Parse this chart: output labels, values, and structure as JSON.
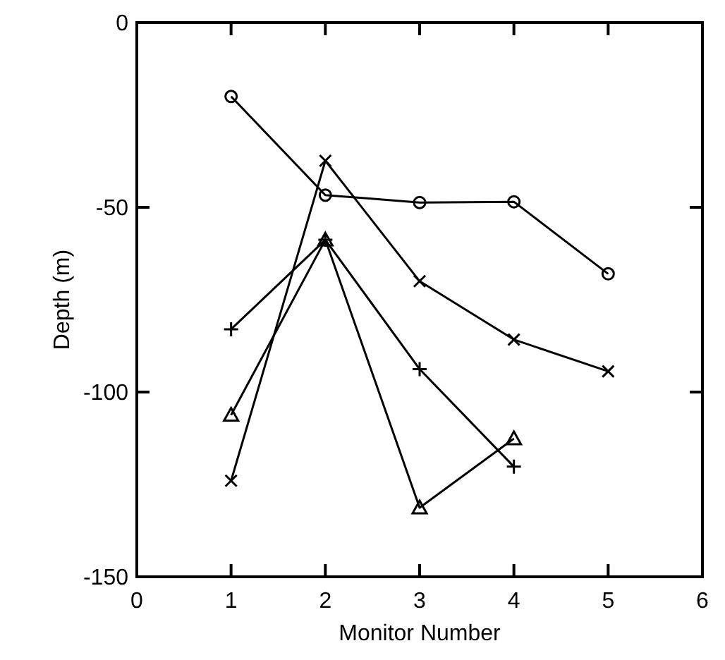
{
  "chart_data": {
    "type": "line",
    "xlabel": "Monitor Number",
    "ylabel": "Depth (m)",
    "xlim": [
      0,
      6
    ],
    "xticks": [
      0,
      1,
      2,
      3,
      4,
      5,
      6
    ],
    "ylim": [
      -150,
      0
    ],
    "yticks": [
      -150,
      -100,
      -50,
      0
    ],
    "grid": false,
    "line_style": "solid",
    "series": [
      {
        "color": "#000000",
        "marker": "circle",
        "x": [
          1,
          2,
          3,
          4,
          5
        ],
        "values": [
          -20,
          -46.7,
          -48.7,
          -48.5,
          -68
        ]
      },
      {
        "color": "#000000",
        "marker": "cross",
        "x": [
          1,
          2,
          3,
          4,
          5
        ],
        "values": [
          -124,
          -37.4,
          -70,
          -85.8,
          -94.4
        ]
      },
      {
        "color": "#000000",
        "marker": "plus",
        "x": [
          1,
          2,
          3,
          4
        ],
        "values": [
          -83,
          -58.8,
          -93.8,
          -120.2
        ]
      },
      {
        "color": "#000000",
        "marker": "triangle",
        "x": [
          1,
          2,
          3,
          4
        ],
        "values": [
          -106.2,
          -58.8,
          -131.3,
          -112.6
        ]
      }
    ]
  }
}
